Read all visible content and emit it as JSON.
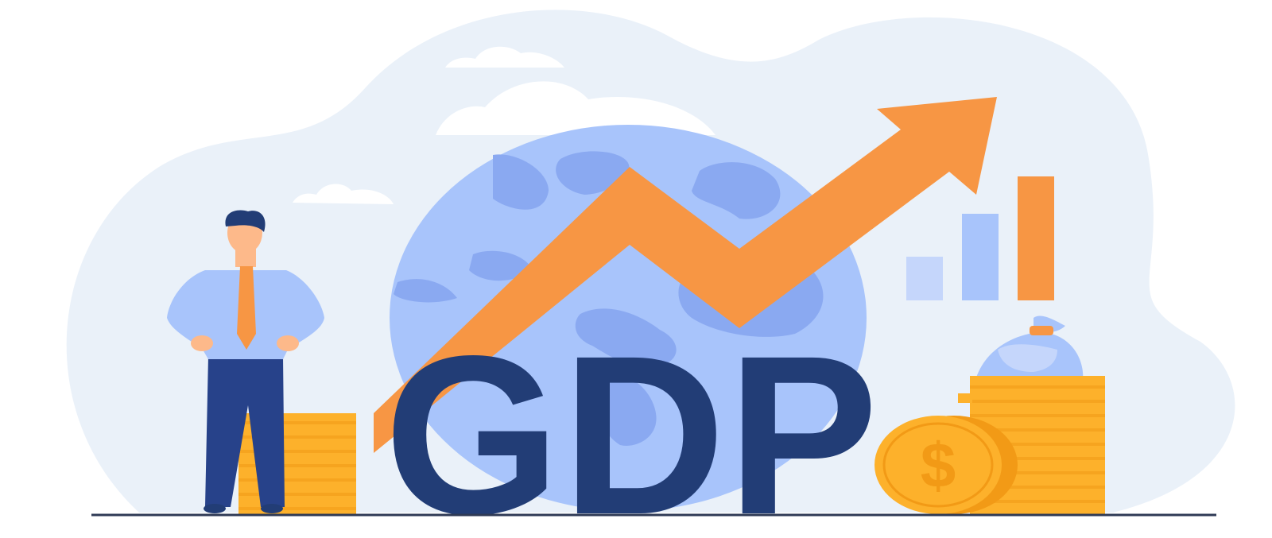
{
  "illustration": {
    "headline": "GDP",
    "colors": {
      "background_blob": "#eaf1f9",
      "cloud": "#ffffff",
      "globe_ocean": "#a8c4fb",
      "globe_land": "#8aa9f1",
      "arrow": "#f79644",
      "headline_text": "#223d76",
      "bar_light": "#c5d6fb",
      "bar_mid": "#a8c4fb",
      "bar_accent": "#f79644",
      "coin_gold": "#fdb12b",
      "coin_dark": "#f29a16",
      "money_bag": "#a8c4fb",
      "suit_shirt": "#a8c4fb",
      "trousers": "#27428a",
      "ground_line": "#2f3a55"
    },
    "icons": [
      "globe-icon",
      "upward-trend-arrow-icon",
      "bar-chart-icon",
      "money-bag-icon",
      "dollar-coin-icon",
      "coin-stack-icon",
      "businessman-figure"
    ]
  }
}
